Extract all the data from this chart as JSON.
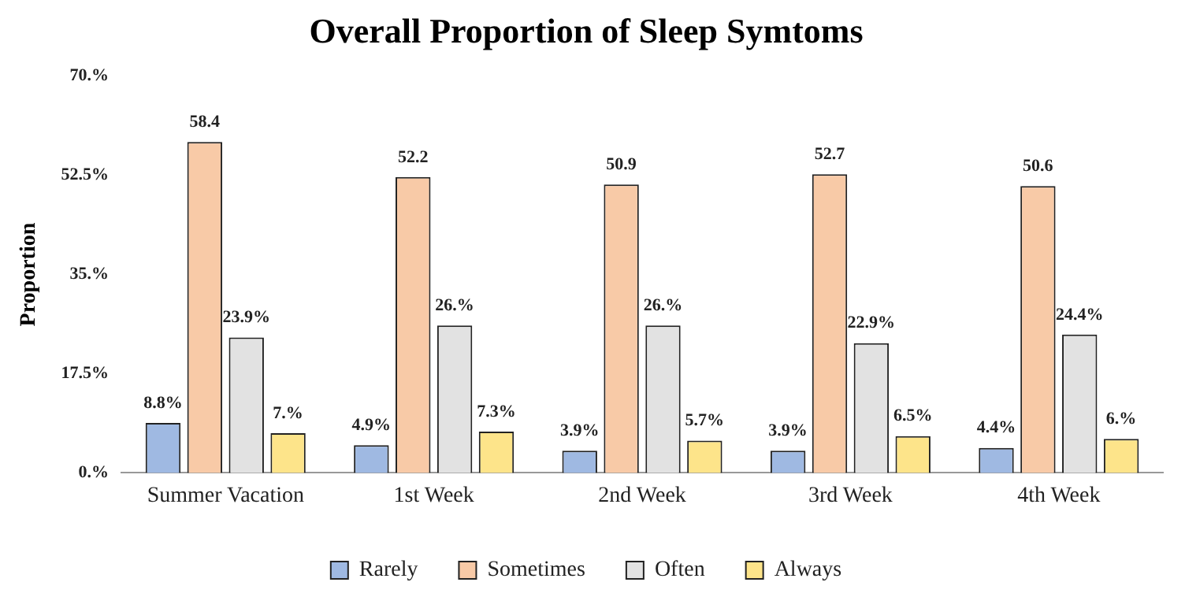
{
  "chart_data": {
    "type": "bar",
    "title": "Overall Proportion of Sleep Symtoms",
    "ylabel": "Proportion",
    "categories": [
      "Summer Vacation",
      "1st Week",
      "2nd Week",
      "3rd Week",
      "4th Week"
    ],
    "series": [
      {
        "name": "Rarely",
        "color": "#9fb9e2",
        "values": [
          8.8,
          4.9,
          3.9,
          3.9,
          4.4
        ],
        "value_labels": [
          "8.8%",
          "4.9%",
          "3.9%",
          "3.9%",
          "4.4%"
        ]
      },
      {
        "name": "Sometimes",
        "color": "#f8caa7",
        "values": [
          58.4,
          52.2,
          50.9,
          52.7,
          50.6
        ],
        "value_labels": [
          "58.4",
          "52.2",
          "50.9",
          "52.7",
          "50.6"
        ]
      },
      {
        "name": "Often",
        "color": "#e2e2e2",
        "values": [
          23.9,
          26,
          26,
          22.9,
          24.4
        ],
        "value_labels": [
          "23.9%",
          "26.%",
          "26.%",
          "22.9%",
          "24.4%"
        ]
      },
      {
        "name": "Always",
        "color": "#fde48a",
        "values": [
          7,
          7.3,
          5.7,
          6.5,
          6
        ],
        "value_labels": [
          "7.%",
          "7.3%",
          "5.7%",
          "6.5%",
          "6.%"
        ]
      }
    ],
    "ylim": [
      0,
      70
    ],
    "yticks": [
      {
        "value": 0,
        "label": "0.%"
      },
      {
        "value": 17.5,
        "label": "17.5%"
      },
      {
        "value": 35,
        "label": "35.%"
      },
      {
        "value": 52.5,
        "label": "52.5%"
      },
      {
        "value": 70,
        "label": "70.%"
      }
    ],
    "grid": false,
    "legend": "bottom"
  }
}
